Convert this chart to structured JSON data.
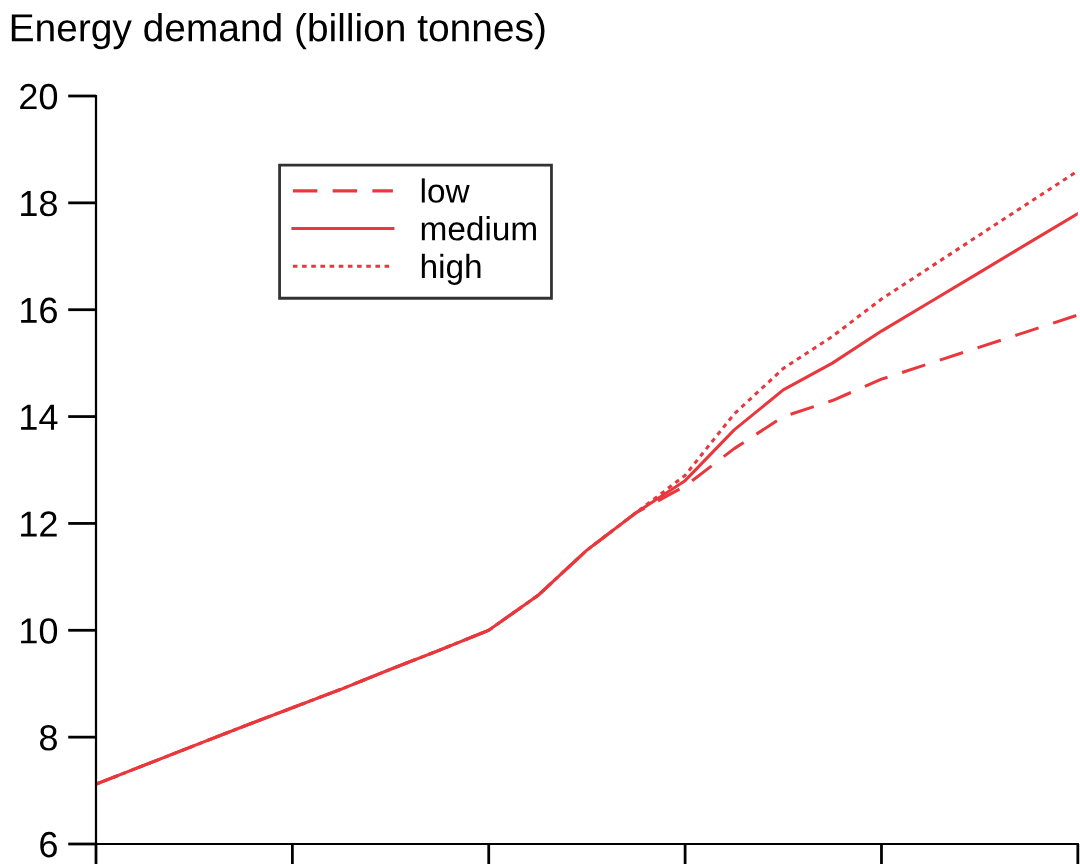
{
  "chart_data": {
    "type": "line",
    "title": "Energy demand (billion tonnes)",
    "categories": [
      null,
      null,
      null,
      null,
      null,
      null,
      null,
      null,
      null,
      null,
      null,
      null,
      null,
      null,
      null,
      null,
      null,
      null,
      null,
      null,
      null
    ],
    "ylim": [
      6,
      20
    ],
    "yticks": [
      6,
      8,
      10,
      12,
      14,
      16,
      18,
      20
    ],
    "grid": false,
    "legend": "top left",
    "series": [
      {
        "name": "low",
        "color": "#e8383d",
        "line_style": "dashed",
        "values": [
          7.12,
          7.48,
          7.84,
          8.2,
          8.55,
          8.9,
          9.27,
          9.63,
          10.0,
          10.65,
          11.5,
          12.2,
          12.7,
          13.4,
          14.0,
          14.3,
          14.7,
          15.0,
          15.3,
          15.6,
          15.9
        ]
      },
      {
        "name": "medium",
        "color": "#e8383d",
        "line_style": "solid",
        "values": [
          7.12,
          7.48,
          7.84,
          8.2,
          8.55,
          8.9,
          9.27,
          9.63,
          10.0,
          10.65,
          11.5,
          12.2,
          12.8,
          13.75,
          14.5,
          15.0,
          15.6,
          16.15,
          16.7,
          17.25,
          17.8
        ]
      },
      {
        "name": "high",
        "color": "#e8383d",
        "line_style": "dotted",
        "values": [
          7.12,
          7.48,
          7.84,
          8.2,
          8.55,
          8.9,
          9.27,
          9.63,
          10.0,
          10.65,
          11.5,
          12.2,
          12.9,
          14.05,
          14.9,
          15.5,
          16.2,
          16.8,
          17.4,
          18.0,
          18.6
        ]
      }
    ]
  }
}
